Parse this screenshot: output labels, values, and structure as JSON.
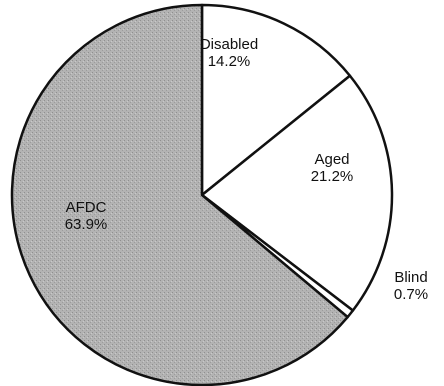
{
  "chart_data": {
    "type": "pie",
    "start_angle_deg": -90,
    "direction": "clockwise",
    "slices": [
      {
        "label": "Disabled",
        "value": 14.2,
        "value_label": "14.2%",
        "fill": "#ffffff"
      },
      {
        "label": "Aged",
        "value": 21.2,
        "value_label": "21.2%",
        "fill": "#ffffff"
      },
      {
        "label": "Blind",
        "value": 0.7,
        "value_label": "0.7%",
        "fill": "#ffffff"
      },
      {
        "label": "AFDC",
        "value": 63.9,
        "value_label": "63.9%",
        "fill": "#b3b3b3"
      }
    ]
  }
}
